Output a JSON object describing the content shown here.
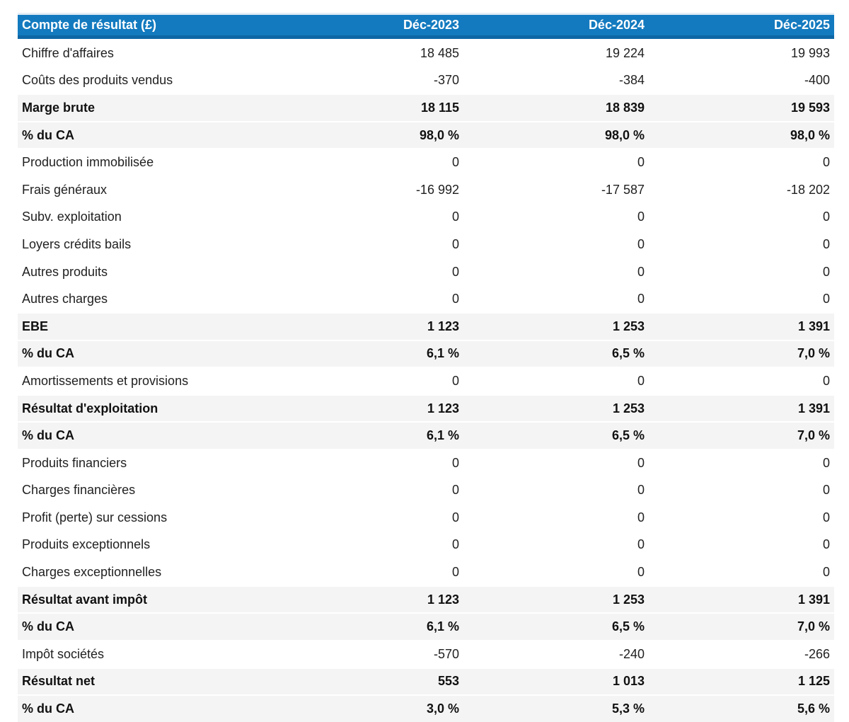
{
  "colors": {
    "header_bg": "#137abf",
    "header_bottom_border": "#0e66a4",
    "header_text": "#ffffff",
    "subtotal_row_bg": "#f4f4f4",
    "body_text": "#212121",
    "page_bg": "#ffffff"
  },
  "chart_data": {
    "type": "table",
    "title": "Compte de résultat (£)",
    "columns": [
      "Déc-2023",
      "Déc-2024",
      "Déc-2025"
    ],
    "rows": [
      {
        "label": "Chiffre d'affaires",
        "values": [
          "18 485",
          "19 224",
          "19 993"
        ],
        "row_type": "normal"
      },
      {
        "label": "Coûts des produits vendus",
        "values": [
          "-370",
          "-384",
          "-400"
        ],
        "row_type": "normal"
      },
      {
        "label": "Marge brute",
        "values": [
          "18 115",
          "18 839",
          "19 593"
        ],
        "row_type": "subtotal"
      },
      {
        "label": "% du CA",
        "values": [
          "98,0 %",
          "98,0 %",
          "98,0 %"
        ],
        "row_type": "subtotal"
      },
      {
        "label": "Production immobilisée",
        "values": [
          "0",
          "0",
          "0"
        ],
        "row_type": "normal"
      },
      {
        "label": "Frais généraux",
        "values": [
          "-16 992",
          "-17 587",
          "-18 202"
        ],
        "row_type": "normal"
      },
      {
        "label": "Subv. exploitation",
        "values": [
          "0",
          "0",
          "0"
        ],
        "row_type": "normal"
      },
      {
        "label": "Loyers crédits bails",
        "values": [
          "0",
          "0",
          "0"
        ],
        "row_type": "normal"
      },
      {
        "label": "Autres produits",
        "values": [
          "0",
          "0",
          "0"
        ],
        "row_type": "normal"
      },
      {
        "label": "Autres charges",
        "values": [
          "0",
          "0",
          "0"
        ],
        "row_type": "normal"
      },
      {
        "label": "EBE",
        "values": [
          "1 123",
          "1 253",
          "1 391"
        ],
        "row_type": "subtotal"
      },
      {
        "label": "% du CA",
        "values": [
          "6,1 %",
          "6,5 %",
          "7,0 %"
        ],
        "row_type": "subtotal"
      },
      {
        "label": "Amortissements et provisions",
        "values": [
          "0",
          "0",
          "0"
        ],
        "row_type": "normal"
      },
      {
        "label": "Résultat d'exploitation",
        "values": [
          "1 123",
          "1 253",
          "1 391"
        ],
        "row_type": "subtotal"
      },
      {
        "label": "% du CA",
        "values": [
          "6,1 %",
          "6,5 %",
          "7,0 %"
        ],
        "row_type": "subtotal"
      },
      {
        "label": "Produits financiers",
        "values": [
          "0",
          "0",
          "0"
        ],
        "row_type": "normal"
      },
      {
        "label": "Charges financières",
        "values": [
          "0",
          "0",
          "0"
        ],
        "row_type": "normal"
      },
      {
        "label": "Profit (perte) sur cessions",
        "values": [
          "0",
          "0",
          "0"
        ],
        "row_type": "normal"
      },
      {
        "label": "Produits exceptionnels",
        "values": [
          "0",
          "0",
          "0"
        ],
        "row_type": "normal"
      },
      {
        "label": "Charges exceptionnelles",
        "values": [
          "0",
          "0",
          "0"
        ],
        "row_type": "normal"
      },
      {
        "label": "Résultat avant impôt",
        "values": [
          "1 123",
          "1 253",
          "1 391"
        ],
        "row_type": "subtotal"
      },
      {
        "label": "% du CA",
        "values": [
          "6,1 %",
          "6,5 %",
          "7,0 %"
        ],
        "row_type": "subtotal"
      },
      {
        "label": "Impôt sociétés",
        "values": [
          "-570",
          "-240",
          "-266"
        ],
        "row_type": "normal"
      },
      {
        "label": "Résultat net",
        "values": [
          "553",
          "1 013",
          "1 125"
        ],
        "row_type": "subtotal"
      },
      {
        "label": "% du CA",
        "values": [
          "3,0 %",
          "5,3 %",
          "5,6 %"
        ],
        "row_type": "subtotal"
      }
    ]
  }
}
